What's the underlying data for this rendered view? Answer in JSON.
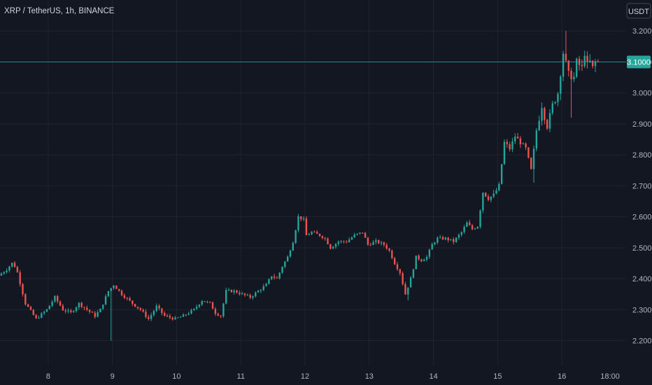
{
  "header": {
    "title": "XRP / TetherUS, 1h, BINANCE"
  },
  "currency_button": {
    "label": "USDT"
  },
  "last_price": {
    "label": "3.1000",
    "value": 3.1
  },
  "colors": {
    "background": "#131722",
    "grid": "#1f2431",
    "up": "#26a69a",
    "down": "#ef5350",
    "text": "#b2b5be",
    "price_line": "#26a69a"
  },
  "chart_data": {
    "type": "candlestick",
    "title": "XRP / TetherUS, 1h, BINANCE",
    "y_axis": {
      "ticks": [
        2.2,
        2.3,
        2.4,
        2.5,
        2.6,
        2.7,
        2.8,
        2.9,
        3.0,
        3.1,
        3.2
      ],
      "tick_labels": [
        "2.2000",
        "2.3000",
        "2.4000",
        "2.5000",
        "2.6000",
        "2.7000",
        "2.8000",
        "2.9000",
        "3.0000",
        "3.1000",
        "3.2000"
      ],
      "range": [
        2.12,
        3.3
      ]
    },
    "x_axis": {
      "tick_labels": [
        "8",
        "9",
        "10",
        "11",
        "12",
        "13",
        "14",
        "15",
        "16",
        "18:00"
      ],
      "tick_hours": [
        18,
        42,
        66,
        90,
        114,
        138,
        162,
        186,
        210,
        228
      ],
      "range_hours": [
        0,
        234
      ]
    },
    "anchors": [
      [
        0,
        2.41
      ],
      [
        3,
        2.43
      ],
      [
        5,
        2.45
      ],
      [
        6,
        2.44
      ],
      [
        7,
        2.42
      ],
      [
        10,
        2.32
      ],
      [
        14,
        2.27
      ],
      [
        18,
        2.3
      ],
      [
        21,
        2.34
      ],
      [
        24,
        2.3
      ],
      [
        27,
        2.29
      ],
      [
        30,
        2.32
      ],
      [
        33,
        2.3
      ],
      [
        36,
        2.28
      ],
      [
        38,
        2.3
      ],
      [
        41,
        2.36
      ],
      [
        43,
        2.38
      ],
      [
        46,
        2.35
      ],
      [
        50,
        2.32
      ],
      [
        53,
        2.3
      ],
      [
        56,
        2.27
      ],
      [
        59,
        2.31
      ],
      [
        62,
        2.28
      ],
      [
        66,
        2.27
      ],
      [
        69,
        2.28
      ],
      [
        73,
        2.3
      ],
      [
        76,
        2.33
      ],
      [
        79,
        2.32
      ],
      [
        81,
        2.29
      ],
      [
        83,
        2.28
      ],
      [
        85,
        2.36
      ],
      [
        88,
        2.36
      ],
      [
        91,
        2.35
      ],
      [
        94,
        2.34
      ],
      [
        97,
        2.36
      ],
      [
        100,
        2.38
      ],
      [
        102,
        2.41
      ],
      [
        104,
        2.4
      ],
      [
        106,
        2.44
      ],
      [
        108,
        2.47
      ],
      [
        110,
        2.52
      ],
      [
        112,
        2.6
      ],
      [
        114,
        2.59
      ],
      [
        115,
        2.54
      ],
      [
        117,
        2.55
      ],
      [
        120,
        2.54
      ],
      [
        122,
        2.53
      ],
      [
        124,
        2.5
      ],
      [
        127,
        2.52
      ],
      [
        130,
        2.52
      ],
      [
        133,
        2.54
      ],
      [
        136,
        2.55
      ],
      [
        138,
        2.51
      ],
      [
        141,
        2.52
      ],
      [
        144,
        2.51
      ],
      [
        146,
        2.49
      ],
      [
        148,
        2.45
      ],
      [
        150,
        2.42
      ],
      [
        152,
        2.35
      ],
      [
        154,
        2.4
      ],
      [
        156,
        2.47
      ],
      [
        158,
        2.46
      ],
      [
        160,
        2.47
      ],
      [
        162,
        2.51
      ],
      [
        164,
        2.53
      ],
      [
        167,
        2.53
      ],
      [
        170,
        2.52
      ],
      [
        173,
        2.55
      ],
      [
        175,
        2.58
      ],
      [
        177,
        2.56
      ],
      [
        179,
        2.57
      ],
      [
        181,
        2.68
      ],
      [
        183,
        2.66
      ],
      [
        185,
        2.67
      ],
      [
        187,
        2.7
      ],
      [
        189,
        2.84
      ],
      [
        191,
        2.82
      ],
      [
        193,
        2.86
      ],
      [
        195,
        2.84
      ],
      [
        197,
        2.82
      ],
      [
        199,
        2.75
      ],
      [
        201,
        2.88
      ],
      [
        203,
        2.96
      ],
      [
        205,
        2.89
      ],
      [
        207,
        2.96
      ],
      [
        209,
        3.0
      ],
      [
        211,
        3.13
      ],
      [
        213,
        3.06
      ],
      [
        215,
        3.05
      ],
      [
        216,
        3.1
      ],
      [
        218,
        3.08
      ],
      [
        219,
        3.13
      ],
      [
        220,
        3.09
      ],
      [
        221,
        3.1
      ],
      [
        222,
        3.08
      ],
      [
        223,
        3.1
      ]
    ],
    "candle_count": 224,
    "current_price": 3.1,
    "grid": true
  }
}
